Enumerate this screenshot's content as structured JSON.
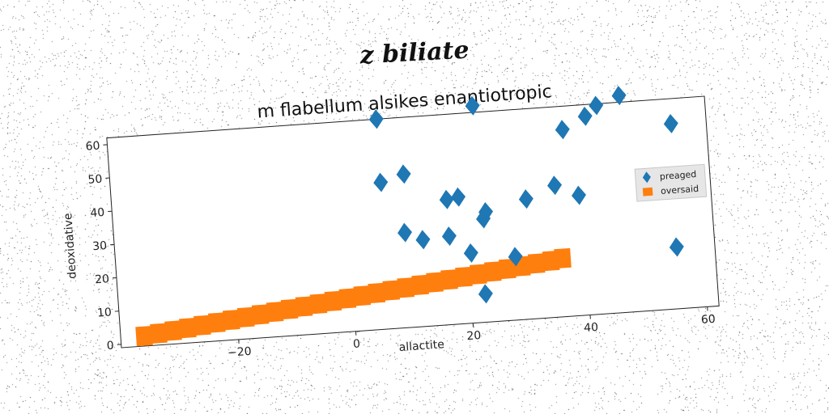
{
  "figure": {
    "suptitle": "z biliate"
  },
  "chart_data": {
    "type": "scatter",
    "title": "m flabellum alsikes enantiotropic",
    "xlabel": "allactite",
    "ylabel": "deoxidative",
    "xlim": [
      -40,
      62
    ],
    "ylim": [
      -1,
      62
    ],
    "xticks": [
      -20,
      0,
      20,
      40,
      60
    ],
    "yticks": [
      0,
      10,
      20,
      30,
      40,
      50,
      60
    ],
    "xtick_labels": [
      "−20",
      "0",
      "20",
      "40",
      "60"
    ],
    "ytick_labels": [
      "0",
      "10",
      "20",
      "30",
      "40",
      "50",
      "60"
    ],
    "grid": false,
    "legend_position": "right",
    "series": [
      {
        "name": "preaged",
        "marker": "diamond",
        "color": "#1f77b4",
        "points": [
          [
            6,
            62
          ],
          [
            6,
            43
          ],
          [
            10,
            45
          ],
          [
            9.5,
            27.5
          ],
          [
            12.5,
            25
          ],
          [
            17,
            25.5
          ],
          [
            17,
            36.5
          ],
          [
            19,
            37
          ],
          [
            20.5,
            20
          ],
          [
            22.5,
            64
          ],
          [
            22.5,
            7.5
          ],
          [
            23,
            30
          ],
          [
            23.5,
            32
          ],
          [
            28,
            18
          ],
          [
            30.5,
            35
          ],
          [
            35.5,
            38.5
          ],
          [
            37.5,
            55
          ],
          [
            39.5,
            35
          ],
          [
            41.5,
            58.5
          ],
          [
            43.5,
            61.5
          ],
          [
            47.5,
            64
          ],
          [
            55.5,
            17.5
          ],
          [
            56,
            54.5
          ]
        ]
      },
      {
        "name": "oversaid",
        "marker": "square",
        "color": "#ff7f0e",
        "points": [
          [
            -36,
            2
          ],
          [
            -33.5,
            2.5
          ],
          [
            -31,
            3
          ],
          [
            -28.5,
            3.5
          ],
          [
            -26,
            4
          ],
          [
            -23.5,
            4.5
          ],
          [
            -21,
            5
          ],
          [
            -18.5,
            5.5
          ],
          [
            -16,
            6
          ],
          [
            -13.5,
            6.5
          ],
          [
            -11,
            7
          ],
          [
            -8.5,
            7.5
          ],
          [
            -6,
            8
          ],
          [
            -3.5,
            8.5
          ],
          [
            -1,
            9
          ],
          [
            1.5,
            9.5
          ],
          [
            4,
            10
          ],
          [
            6.5,
            10.5
          ],
          [
            9,
            11
          ],
          [
            11.5,
            11.5
          ],
          [
            14,
            12
          ],
          [
            16.5,
            12.5
          ],
          [
            19,
            13
          ],
          [
            21.5,
            13.5
          ],
          [
            24,
            14
          ],
          [
            26.5,
            14.5
          ],
          [
            29,
            15
          ],
          [
            31.5,
            15.5
          ],
          [
            34,
            16
          ],
          [
            36,
            16.5
          ]
        ]
      }
    ]
  }
}
